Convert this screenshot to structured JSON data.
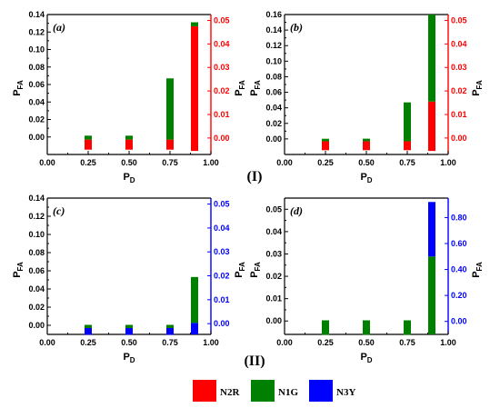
{
  "colors": {
    "N2R": "#ff0000",
    "N1G": "#008000",
    "N3Y": "#0000ff"
  },
  "group_labels": [
    "(I)",
    "(II)"
  ],
  "legend": [
    {
      "key": "N2R",
      "label": "N2R",
      "color": "#ff0000"
    },
    {
      "key": "N1G",
      "label": "N1G",
      "color": "#008000"
    },
    {
      "key": "N3Y",
      "label": "N3Y",
      "color": "#0000ff"
    }
  ],
  "chart_data": [
    {
      "type": "bar",
      "panel_label": "(a)",
      "xlabel": "P_D",
      "ylabel": "P_FA",
      "ylabel_right": "P_FA",
      "x": [
        0.25,
        0.5,
        0.75,
        0.9
      ],
      "xlim": [
        0.0,
        1.0
      ],
      "xticks": [
        "0.00",
        "0.25",
        "0.50",
        "0.75",
        "1.00"
      ],
      "ylim": [
        -0.02,
        0.14
      ],
      "yticks": [
        "-0.00",
        "0.01",
        "0.02",
        "0.03",
        "0.04",
        "0.05",
        "0.06",
        "0.07",
        "0.08",
        "0.09",
        "0.10",
        "0.11",
        "0.12",
        "0.13",
        "0.14"
      ],
      "ytick_values": [
        0.0,
        0.02,
        0.04,
        0.06,
        0.08,
        0.1,
        0.12,
        0.14
      ],
      "ytick_labels": [
        "0.00",
        "0.02",
        "0.04",
        "0.06",
        "0.08",
        "0.10",
        "0.12",
        "0.14"
      ],
      "ylim_right": [
        -0.007,
        0.0525
      ],
      "yticks_right": [
        0.0,
        0.01,
        0.02,
        0.03,
        0.04,
        0.05
      ],
      "ytick_labels_right": [
        "0.00",
        "0.01",
        "0.02",
        "0.03",
        "0.04",
        "0.05"
      ],
      "right_axis_color": "#ff0000",
      "series": [
        {
          "key": "N2R",
          "values": [
            -0.003,
            -0.003,
            -0.003,
            0.0475
          ]
        },
        {
          "key": "N1G",
          "values": [
            0.002,
            0.002,
            0.025,
            0.0016
          ]
        }
      ],
      "series_low": [
        0.0,
        0.0,
        0.0,
        0.0
      ],
      "note": "right axis",
      "series_base_right": [
        -0.005,
        -0.005,
        -0.005,
        -0.005
      ]
    },
    {
      "type": "bar",
      "panel_label": "(b)",
      "xlabel": "P_D",
      "ylabel": "P_FA",
      "ylabel_right": "P_FA",
      "x": [
        0.25,
        0.5,
        0.75,
        0.9
      ],
      "xlim": [
        0.0,
        1.0
      ],
      "xticks": [
        "0.00",
        "0.25",
        "0.50",
        "0.75",
        "1.00"
      ],
      "ylim": [
        -0.02,
        0.16
      ],
      "ytick_values": [
        0.0,
        0.02,
        0.04,
        0.06,
        0.08,
        0.1,
        0.12,
        0.14,
        0.16
      ],
      "ytick_labels": [
        "0.00",
        "0.02",
        "0.04",
        "0.06",
        "0.08",
        "0.10",
        "0.12",
        "0.14",
        "0.16"
      ],
      "ylim_right": [
        -0.007,
        0.0525
      ],
      "yticks_right": [
        0.0,
        0.01,
        0.02,
        0.03,
        0.04,
        0.05
      ],
      "ytick_labels_right": [
        "0.00",
        "0.01",
        "0.02",
        "0.03",
        "0.04",
        "0.05"
      ],
      "right_axis_color": "#ff0000",
      "series": [
        {
          "key": "N2R",
          "values": [
            -0.003,
            -0.003,
            -0.003,
            0.015
          ]
        },
        {
          "key": "N1G",
          "values": [
            0.0035,
            0.0035,
            0.023,
            0.0375
          ]
        }
      ]
    },
    {
      "type": "bar",
      "panel_label": "(c)",
      "xlabel": "P_D",
      "ylabel": "P_FA",
      "ylabel_right": "P_FA",
      "x": [
        0.25,
        0.5,
        0.75,
        0.9
      ],
      "xlim": [
        0.0,
        1.0
      ],
      "xticks": [
        "0.00",
        "0.25",
        "0.50",
        "0.75",
        "1.00"
      ],
      "ylim": [
        -0.01,
        0.14
      ],
      "ytick_values": [
        0.0,
        0.02,
        0.04,
        0.06,
        0.08,
        0.1,
        0.12,
        0.14
      ],
      "ytick_labels": [
        "0.00",
        "0.02",
        "0.04",
        "0.06",
        "0.08",
        "0.10",
        "0.12",
        "0.14"
      ],
      "ylim_right": [
        -0.0045,
        0.0525
      ],
      "yticks_right": [
        0.0,
        0.01,
        0.02,
        0.03,
        0.04,
        0.05
      ],
      "ytick_labels_right": [
        "0.00",
        "0.01",
        "0.02",
        "0.03",
        "0.04",
        "0.05"
      ],
      "right_axis_color": "#0000ff",
      "series": [
        {
          "key": "N3Y",
          "values": [
            -0.004,
            -0.004,
            -0.004,
            -0.004
          ]
        },
        {
          "key": "N1G",
          "values": [
            0.002,
            0.002,
            0.002,
            0.02
          ]
        }
      ]
    },
    {
      "type": "bar",
      "panel_label": "(d)",
      "xlabel": "P_D",
      "ylabel": "P_FA",
      "ylabel_right": "P_FA",
      "x": [
        0.25,
        0.5,
        0.75,
        0.9
      ],
      "xlim": [
        0.0,
        1.0
      ],
      "xticks": [
        "0.00",
        "0.25",
        "0.50",
        "0.75",
        "1.00"
      ],
      "ylim": [
        -0.006,
        0.055
      ],
      "ytick_values": [
        0.0,
        0.01,
        0.02,
        0.03,
        0.04,
        0.05
      ],
      "ytick_labels": [
        "0.00",
        "0.01",
        "0.02",
        "0.03",
        "0.04",
        "0.05"
      ],
      "ylim_right": [
        -0.1,
        0.95
      ],
      "yticks_right": [
        0.0,
        0.2,
        0.4,
        0.6,
        0.8
      ],
      "ytick_labels_right": [
        "0.00",
        "0.20",
        "0.40",
        "0.60",
        "0.80"
      ],
      "right_axis_color": "#0000ff",
      "series": [
        {
          "key": "N1G",
          "values": [
            0.05,
            0.05,
            0.05,
            0.5
          ]
        },
        {
          "key": "N3Y",
          "values": [
            0.0,
            0.0,
            0.0,
            0.42
          ]
        }
      ]
    }
  ]
}
